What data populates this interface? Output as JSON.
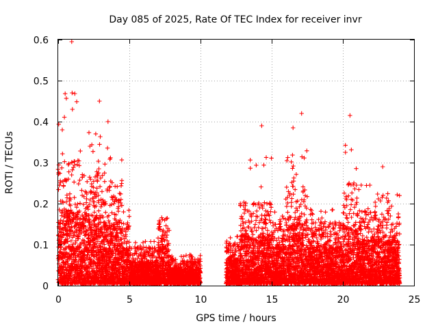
{
  "chart_data": {
    "type": "scatter",
    "title": "Day 085 of 2025, Rate Of TEC Index for receiver invr",
    "xlabel": "GPS time / hours",
    "ylabel": "ROTI / TECUs",
    "xlim": [
      0,
      25
    ],
    "ylim": [
      0,
      0.6
    ],
    "xticks": [
      0,
      5,
      10,
      15,
      20,
      25
    ],
    "xtick_labels": [
      "0",
      "5",
      "10",
      "15",
      "20",
      "25"
    ],
    "yticks": [
      0,
      0.1,
      0.2,
      0.3,
      0.4,
      0.5,
      0.6
    ],
    "ytick_labels": [
      "0",
      "0.1",
      "0.2",
      "0.3",
      "0.4",
      "0.5",
      "0.6"
    ],
    "grid": true,
    "marker": "+",
    "color": "#ff0000",
    "notable_points": [
      {
        "x": 0.95,
        "y": 0.595
      },
      {
        "x": 0.98,
        "y": 0.47
      },
      {
        "x": 1.0,
        "y": 0.43
      },
      {
        "x": 2.9,
        "y": 0.45
      },
      {
        "x": 3.5,
        "y": 0.4
      },
      {
        "x": 14.3,
        "y": 0.39
      },
      {
        "x": 16.5,
        "y": 0.385
      },
      {
        "x": 17.1,
        "y": 0.42
      },
      {
        "x": 20.5,
        "y": 0.415
      },
      {
        "x": 22.8,
        "y": 0.29
      }
    ],
    "activity_profile": [
      {
        "x_range": [
          0,
          1.5
        ],
        "typical_max": 0.3,
        "peak": 0.595
      },
      {
        "x_range": [
          1.5,
          3.0
        ],
        "typical_max": 0.28,
        "peak": 0.45
      },
      {
        "x_range": [
          3.0,
          4.5
        ],
        "typical_max": 0.25,
        "peak": 0.4
      },
      {
        "x_range": [
          4.5,
          5.0
        ],
        "typical_max": 0.15,
        "peak": 0.21
      },
      {
        "x_range": [
          5.0,
          7.0
        ],
        "typical_max": 0.09,
        "peak": 0.12
      },
      {
        "x_range": [
          7.0,
          7.8
        ],
        "typical_max": 0.15,
        "peak": 0.19
      },
      {
        "x_range": [
          7.8,
          10.0
        ],
        "typical_max": 0.06,
        "peak": 0.09
      },
      {
        "x_range": [
          10.0,
          11.8
        ],
        "typical_max": 0,
        "peak": 0
      },
      {
        "x_range": [
          11.8,
          12.8
        ],
        "typical_max": 0.1,
        "peak": 0.14
      },
      {
        "x_range": [
          12.8,
          15.0
        ],
        "typical_max": 0.2,
        "peak": 0.39
      },
      {
        "x_range": [
          15.0,
          16.0
        ],
        "typical_max": 0.15,
        "peak": 0.2
      },
      {
        "x_range": [
          16.0,
          17.5
        ],
        "typical_max": 0.25,
        "peak": 0.42
      },
      {
        "x_range": [
          17.5,
          20.0
        ],
        "typical_max": 0.15,
        "peak": 0.22
      },
      {
        "x_range": [
          20.0,
          21.0
        ],
        "typical_max": 0.25,
        "peak": 0.415
      },
      {
        "x_range": [
          21.0,
          24.0
        ],
        "typical_max": 0.18,
        "peak": 0.29
      }
    ]
  }
}
